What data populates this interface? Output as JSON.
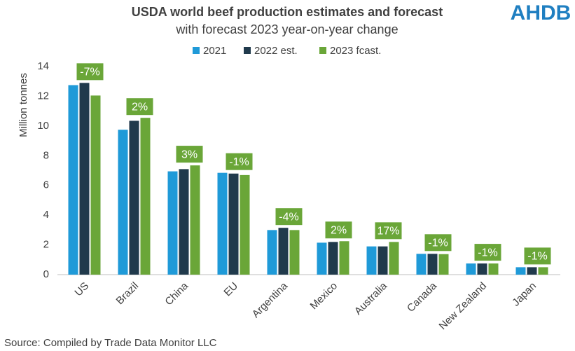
{
  "chart_data": {
    "type": "bar",
    "title": "USDA world beef production estimates and forecast",
    "subtitle": "with forecast 2023 year-on-year change",
    "logo": "AHDB",
    "y_label": "Million tonnes",
    "source": "Source: Compiled by Trade Data Monitor LLC",
    "categories": [
      "US",
      "Brazil",
      "China",
      "EU",
      "Argentina",
      "Mexico",
      "Australia",
      "Canada",
      "New Zealand",
      "Japan"
    ],
    "series": [
      {
        "name": "2021",
        "color": "#1f9ad8",
        "values": [
          12.75,
          9.75,
          6.95,
          6.85,
          3.0,
          2.15,
          1.9,
          1.4,
          0.75,
          0.5
        ]
      },
      {
        "name": "2022 est.",
        "color": "#203a4c",
        "values": [
          12.9,
          10.35,
          7.1,
          6.8,
          3.15,
          2.2,
          1.9,
          1.4,
          0.75,
          0.5
        ]
      },
      {
        "name": "2023 fcast.",
        "color": "#6aa638",
        "values": [
          12.05,
          10.55,
          7.35,
          6.7,
          3.0,
          2.25,
          2.2,
          1.38,
          0.75,
          0.5
        ]
      }
    ],
    "annotations": [
      "-7%",
      "2%",
      "3%",
      "-1%",
      "-4%",
      "2%",
      "17%",
      "-1%",
      "-1%",
      "-1%"
    ],
    "annotation_color": "#6aa638",
    "ylim": [
      0,
      14
    ],
    "yticks": [
      0,
      2,
      4,
      6,
      8,
      10,
      12,
      14
    ],
    "grid": false,
    "legend": "top"
  }
}
